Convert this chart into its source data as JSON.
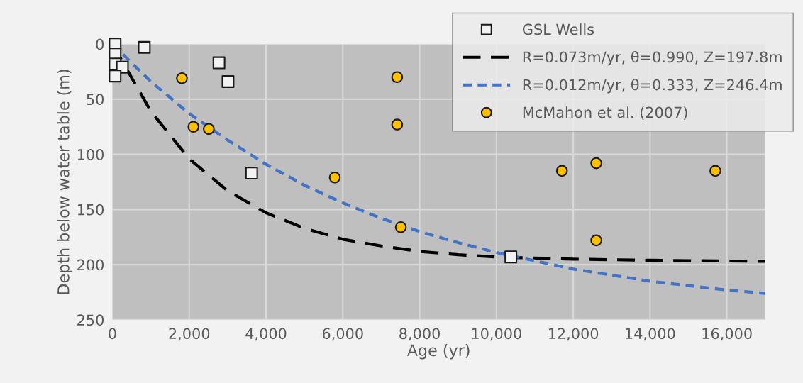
{
  "chart_data": {
    "type": "scatter",
    "xlabel": "Age (yr)",
    "ylabel": "Depth below water table (m)",
    "xlim": [
      0,
      17000
    ],
    "xticks": [
      0,
      {
        "value": 2000,
        "label": "2,000"
      },
      {
        "value": 4000,
        "label": "4,000"
      },
      {
        "value": 6000,
        "label": "6,000"
      },
      {
        "value": 8000,
        "label": "8,000"
      },
      {
        "value": 10000,
        "label": "10,000"
      },
      {
        "value": 12000,
        "label": "12,000"
      },
      {
        "value": 14000,
        "label": "14,000"
      },
      {
        "value": 16000,
        "label": "16,000"
      }
    ],
    "ylim": [
      250,
      0
    ],
    "yticks": [
      0,
      50,
      100,
      150,
      200,
      250
    ],
    "grid": true,
    "legend": "top right",
    "series": [
      {
        "name": "GSL Wells",
        "marker": "square",
        "color": "#f2f2f2",
        "x": [
          70,
          70,
          70,
          260,
          70,
          830,
          2775,
          3010,
          3625,
          10375
        ],
        "values": [
          0,
          9,
          18,
          21,
          29,
          3,
          17,
          34,
          117,
          193
        ]
      },
      {
        "name": "R=0.073m/yr, θ=0.990, Z=197.8m",
        "type": "line",
        "marker": "none",
        "line_style": "dashed",
        "color": "#000000",
        "x": [
          0,
          1000,
          2000,
          3000,
          4000,
          5000,
          6000,
          7000,
          8000,
          9000,
          10000,
          12000,
          14000,
          17000
        ],
        "values": [
          0,
          61,
          104,
          133,
          153,
          167,
          177,
          183,
          188,
          191,
          193,
          195,
          196,
          197
        ]
      },
      {
        "name": "R=0.012m/yr, θ=0.333, Z=246.4m",
        "type": "line",
        "marker": "none",
        "line_style": "dotted",
        "color": "#4472c4",
        "x": [
          0,
          1000,
          2000,
          3000,
          4000,
          5000,
          6000,
          7000,
          8000,
          9000,
          10000,
          12000,
          14000,
          16000,
          17000
        ],
        "values": [
          0,
          34,
          63,
          87,
          109,
          128,
          144,
          158,
          170,
          180,
          189,
          204,
          215,
          223,
          226
        ]
      },
      {
        "name": "McMahon et al. (2007)",
        "marker": "circle",
        "color": "#ffc000",
        "x": [
          1810,
          2110,
          2510,
          5790,
          7415,
          7415,
          7510,
          11705,
          12600,
          15700,
          12600
        ],
        "values": [
          31,
          75,
          77,
          121,
          30,
          73,
          166,
          115,
          108,
          115,
          178
        ]
      }
    ]
  }
}
